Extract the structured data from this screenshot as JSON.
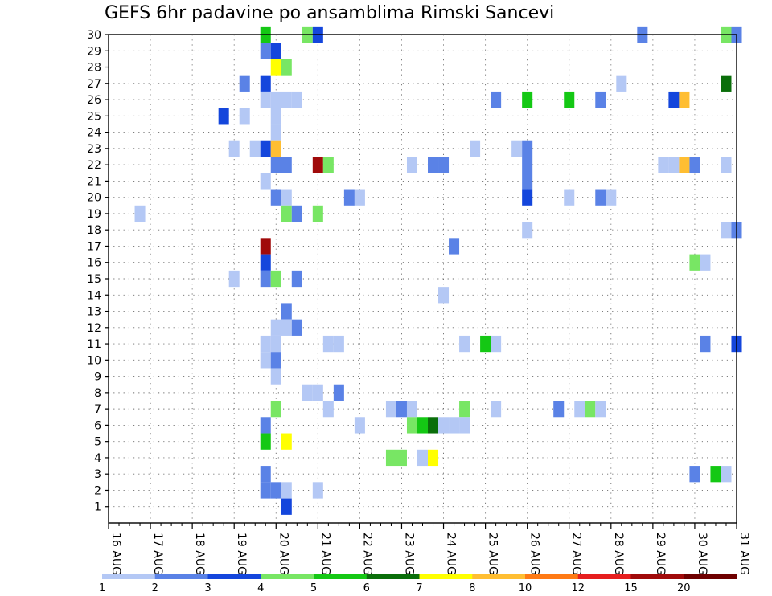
{
  "chart_data": {
    "type": "heatmap",
    "title": "GEFS 6hr padavine po ansamblima Rimski Sancevi",
    "xlabel": "",
    "ylabel": "",
    "x_ticks": [
      "16 AUG",
      "17 AUG",
      "18 AUG",
      "19 AUG",
      "20 AUG",
      "21 AUG",
      "22 AUG",
      "23 AUG",
      "24 AUG",
      "25 AUG",
      "26 AUG",
      "27 AUG",
      "28 AUG",
      "29 AUG",
      "30 AUG",
      "31 AUG"
    ],
    "y_ticks": [
      1,
      2,
      3,
      4,
      5,
      6,
      7,
      8,
      9,
      10,
      11,
      12,
      13,
      14,
      15,
      16,
      17,
      18,
      19,
      20,
      21,
      22,
      23,
      24,
      25,
      26,
      27,
      28,
      29,
      30
    ],
    "xlim": [
      16,
      31
    ],
    "ylim": [
      0,
      30
    ],
    "grid": true,
    "colorbar": {
      "labels": [
        "1",
        "2",
        "3",
        "4",
        "5",
        "6",
        "7",
        "8",
        "10",
        "12",
        "15",
        "20"
      ],
      "colors": [
        "#b4c8f5",
        "#5a82e6",
        "#1446dc",
        "#78e664",
        "#14c814",
        "#0a6e0a",
        "#ffff00",
        "#ffbe32",
        "#ff7a14",
        "#e61e1e",
        "#a00a0a",
        "#6e0000"
      ]
    },
    "cells": [
      {
        "x": 19.75,
        "y": 30,
        "level": 5
      },
      {
        "x": 20.75,
        "y": 30,
        "level": 4
      },
      {
        "x": 21.0,
        "y": 30,
        "level": 3
      },
      {
        "x": 28.75,
        "y": 30,
        "level": 2
      },
      {
        "x": 30.75,
        "y": 30,
        "level": 4
      },
      {
        "x": 31.0,
        "y": 30,
        "level": 2
      },
      {
        "x": 19.75,
        "y": 29,
        "level": 2
      },
      {
        "x": 20.0,
        "y": 29,
        "level": 3
      },
      {
        "x": 20.0,
        "y": 28,
        "level": 7
      },
      {
        "x": 20.25,
        "y": 28,
        "level": 4
      },
      {
        "x": 19.25,
        "y": 27,
        "level": 2
      },
      {
        "x": 19.75,
        "y": 27,
        "level": 3
      },
      {
        "x": 28.25,
        "y": 27,
        "level": 1
      },
      {
        "x": 30.75,
        "y": 27,
        "level": 6
      },
      {
        "x": 19.75,
        "y": 26,
        "level": 1
      },
      {
        "x": 20.0,
        "y": 26,
        "level": 1
      },
      {
        "x": 20.25,
        "y": 26,
        "level": 1
      },
      {
        "x": 20.5,
        "y": 26,
        "level": 1
      },
      {
        "x": 25.25,
        "y": 26,
        "level": 2
      },
      {
        "x": 26.0,
        "y": 26,
        "level": 5
      },
      {
        "x": 27.0,
        "y": 26,
        "level": 5
      },
      {
        "x": 27.75,
        "y": 26,
        "level": 2
      },
      {
        "x": 29.5,
        "y": 26,
        "level": 3
      },
      {
        "x": 29.75,
        "y": 26,
        "level": 8
      },
      {
        "x": 18.75,
        "y": 25,
        "level": 3
      },
      {
        "x": 19.25,
        "y": 25,
        "level": 1
      },
      {
        "x": 20.0,
        "y": 25,
        "level": 1
      },
      {
        "x": 20.0,
        "y": 24,
        "level": 1
      },
      {
        "x": 19.0,
        "y": 23,
        "level": 1
      },
      {
        "x": 19.5,
        "y": 23,
        "level": 1
      },
      {
        "x": 19.75,
        "y": 23,
        "level": 3
      },
      {
        "x": 20.0,
        "y": 23,
        "level": 8
      },
      {
        "x": 24.75,
        "y": 23,
        "level": 1
      },
      {
        "x": 25.75,
        "y": 23,
        "level": 1
      },
      {
        "x": 26.0,
        "y": 23,
        "level": 2
      },
      {
        "x": 20.0,
        "y": 22,
        "level": 2
      },
      {
        "x": 20.25,
        "y": 22,
        "level": 2
      },
      {
        "x": 21.0,
        "y": 22,
        "level": 11
      },
      {
        "x": 21.25,
        "y": 22,
        "level": 4
      },
      {
        "x": 23.25,
        "y": 22,
        "level": 1
      },
      {
        "x": 23.75,
        "y": 22,
        "level": 2
      },
      {
        "x": 24.0,
        "y": 22,
        "level": 2
      },
      {
        "x": 26.0,
        "y": 22,
        "level": 2
      },
      {
        "x": 29.25,
        "y": 22,
        "level": 1
      },
      {
        "x": 29.5,
        "y": 22,
        "level": 1
      },
      {
        "x": 29.75,
        "y": 22,
        "level": 8
      },
      {
        "x": 30.0,
        "y": 22,
        "level": 2
      },
      {
        "x": 30.75,
        "y": 22,
        "level": 1
      },
      {
        "x": 19.75,
        "y": 21,
        "level": 1
      },
      {
        "x": 26.0,
        "y": 21,
        "level": 2
      },
      {
        "x": 20.0,
        "y": 20,
        "level": 2
      },
      {
        "x": 20.25,
        "y": 20,
        "level": 1
      },
      {
        "x": 21.75,
        "y": 20,
        "level": 2
      },
      {
        "x": 22.0,
        "y": 20,
        "level": 1
      },
      {
        "x": 26.0,
        "y": 20,
        "level": 3
      },
      {
        "x": 27.0,
        "y": 20,
        "level": 1
      },
      {
        "x": 27.75,
        "y": 20,
        "level": 2
      },
      {
        "x": 28.0,
        "y": 20,
        "level": 1
      },
      {
        "x": 16.75,
        "y": 19,
        "level": 1
      },
      {
        "x": 20.25,
        "y": 19,
        "level": 4
      },
      {
        "x": 20.5,
        "y": 19,
        "level": 2
      },
      {
        "x": 21.0,
        "y": 19,
        "level": 4
      },
      {
        "x": 26.0,
        "y": 18,
        "level": 1
      },
      {
        "x": 30.75,
        "y": 18,
        "level": 1
      },
      {
        "x": 31.0,
        "y": 18,
        "level": 2
      },
      {
        "x": 19.75,
        "y": 17,
        "level": 11
      },
      {
        "x": 24.25,
        "y": 17,
        "level": 2
      },
      {
        "x": 19.75,
        "y": 16,
        "level": 3
      },
      {
        "x": 30.0,
        "y": 16,
        "level": 4
      },
      {
        "x": 30.25,
        "y": 16,
        "level": 1
      },
      {
        "x": 19.0,
        "y": 15,
        "level": 1
      },
      {
        "x": 19.75,
        "y": 15,
        "level": 2
      },
      {
        "x": 20.0,
        "y": 15,
        "level": 4
      },
      {
        "x": 20.5,
        "y": 15,
        "level": 2
      },
      {
        "x": 24.0,
        "y": 14,
        "level": 1
      },
      {
        "x": 20.25,
        "y": 13,
        "level": 2
      },
      {
        "x": 20.0,
        "y": 12,
        "level": 1
      },
      {
        "x": 20.25,
        "y": 12,
        "level": 1
      },
      {
        "x": 20.5,
        "y": 12,
        "level": 2
      },
      {
        "x": 19.75,
        "y": 11,
        "level": 1
      },
      {
        "x": 20.0,
        "y": 11,
        "level": 1
      },
      {
        "x": 21.25,
        "y": 11,
        "level": 1
      },
      {
        "x": 21.5,
        "y": 11,
        "level": 1
      },
      {
        "x": 24.5,
        "y": 11,
        "level": 1
      },
      {
        "x": 25.0,
        "y": 11,
        "level": 5
      },
      {
        "x": 25.25,
        "y": 11,
        "level": 1
      },
      {
        "x": 30.25,
        "y": 11,
        "level": 2
      },
      {
        "x": 31.0,
        "y": 11,
        "level": 3
      },
      {
        "x": 19.75,
        "y": 10,
        "level": 1
      },
      {
        "x": 20.0,
        "y": 10,
        "level": 2
      },
      {
        "x": 20.0,
        "y": 9,
        "level": 1
      },
      {
        "x": 20.75,
        "y": 8,
        "level": 1
      },
      {
        "x": 21.0,
        "y": 8,
        "level": 1
      },
      {
        "x": 21.5,
        "y": 8,
        "level": 2
      },
      {
        "x": 20.0,
        "y": 7,
        "level": 4
      },
      {
        "x": 21.25,
        "y": 7,
        "level": 1
      },
      {
        "x": 22.75,
        "y": 7,
        "level": 1
      },
      {
        "x": 23.0,
        "y": 7,
        "level": 2
      },
      {
        "x": 23.25,
        "y": 7,
        "level": 1
      },
      {
        "x": 24.5,
        "y": 7,
        "level": 4
      },
      {
        "x": 25.25,
        "y": 7,
        "level": 1
      },
      {
        "x": 26.75,
        "y": 7,
        "level": 2
      },
      {
        "x": 27.25,
        "y": 7,
        "level": 1
      },
      {
        "x": 27.5,
        "y": 7,
        "level": 4
      },
      {
        "x": 27.75,
        "y": 7,
        "level": 1
      },
      {
        "x": 19.75,
        "y": 6,
        "level": 2
      },
      {
        "x": 22.0,
        "y": 6,
        "level": 1
      },
      {
        "x": 23.25,
        "y": 6,
        "level": 4
      },
      {
        "x": 23.5,
        "y": 6,
        "level": 5
      },
      {
        "x": 23.75,
        "y": 6,
        "level": 6
      },
      {
        "x": 24.0,
        "y": 6,
        "level": 1
      },
      {
        "x": 24.25,
        "y": 6,
        "level": 1
      },
      {
        "x": 24.5,
        "y": 6,
        "level": 1
      },
      {
        "x": 19.75,
        "y": 5,
        "level": 5
      },
      {
        "x": 20.25,
        "y": 5,
        "level": 7
      },
      {
        "x": 22.75,
        "y": 4,
        "level": 4
      },
      {
        "x": 23.0,
        "y": 4,
        "level": 4
      },
      {
        "x": 23.5,
        "y": 4,
        "level": 1
      },
      {
        "x": 23.75,
        "y": 4,
        "level": 7
      },
      {
        "x": 19.75,
        "y": 3,
        "level": 2
      },
      {
        "x": 30.0,
        "y": 3,
        "level": 2
      },
      {
        "x": 30.5,
        "y": 3,
        "level": 5
      },
      {
        "x": 30.75,
        "y": 3,
        "level": 1
      },
      {
        "x": 19.75,
        "y": 2,
        "level": 2
      },
      {
        "x": 20.0,
        "y": 2,
        "level": 2
      },
      {
        "x": 20.25,
        "y": 2,
        "level": 1
      },
      {
        "x": 21.0,
        "y": 2,
        "level": 1
      },
      {
        "x": 20.25,
        "y": 1,
        "level": 3
      }
    ]
  }
}
